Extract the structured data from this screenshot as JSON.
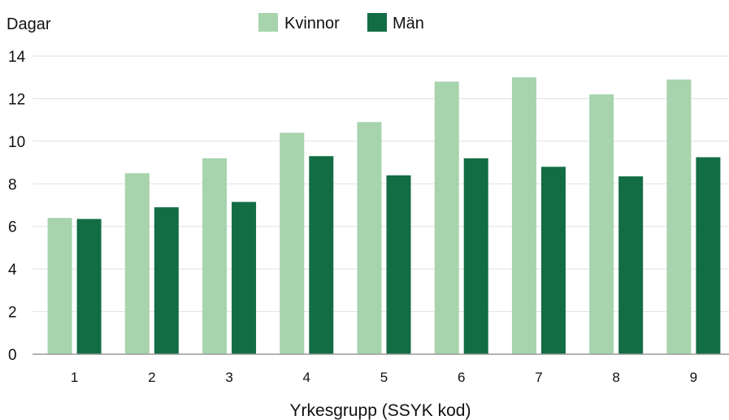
{
  "chart_data": {
    "type": "bar",
    "ylabel": "Dagar",
    "xlabel": "Yrkesgrupp (SSYK kod)",
    "categories": [
      "1",
      "2",
      "3",
      "4",
      "5",
      "6",
      "7",
      "8",
      "9"
    ],
    "series": [
      {
        "name": "Kvinnor",
        "color": "#a7d3ad",
        "values": [
          6.4,
          8.5,
          9.2,
          10.4,
          10.9,
          12.8,
          13.0,
          12.2,
          12.9
        ]
      },
      {
        "name": "Män",
        "color": "#136d44",
        "values": [
          6.35,
          6.9,
          7.15,
          9.3,
          8.4,
          9.2,
          8.8,
          8.35,
          9.25
        ]
      }
    ],
    "ylim": [
      0,
      14
    ],
    "yticks": [
      0,
      2,
      4,
      6,
      8,
      10,
      12,
      14
    ],
    "grid": true,
    "legend_position": "top-center"
  }
}
